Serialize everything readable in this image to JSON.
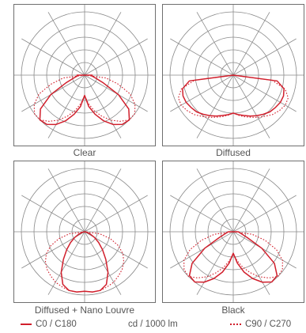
{
  "colors": {
    "curve": "#d11f2c",
    "grid": "#8a8a8a",
    "frame": "#6f6f6f"
  },
  "panels": [
    {
      "caption": "Clear",
      "c0": [
        0.32,
        0.5,
        0.64,
        0.78,
        0.9,
        0.98,
        1.0,
        0.88,
        0.62,
        0.32,
        0.18,
        0.12,
        0.12
      ],
      "c90": [
        0.32,
        0.45,
        0.58,
        0.7,
        0.82,
        0.92,
        1.0,
        1.0,
        0.92,
        0.78,
        0.55,
        0.34,
        0.0
      ]
    },
    {
      "caption": "Diffused",
      "c0": [
        0.6,
        0.63,
        0.66,
        0.7,
        0.74,
        0.78,
        0.82,
        0.84,
        0.86,
        0.86,
        0.83,
        0.7,
        0.0
      ],
      "c90": [
        0.6,
        0.64,
        0.68,
        0.72,
        0.77,
        0.82,
        0.88,
        0.92,
        0.95,
        0.94,
        0.85,
        0.62,
        0.0
      ]
    },
    {
      "caption": "Diffused + Nano Louvre",
      "c0": [
        0.94,
        0.96,
        0.96,
        0.9,
        0.74,
        0.55,
        0.4,
        0.28,
        0.18,
        0.1,
        0.04,
        0.0,
        0.0
      ],
      "c90": [
        0.94,
        0.96,
        0.96,
        0.94,
        0.92,
        0.88,
        0.84,
        0.78,
        0.7,
        0.58,
        0.42,
        0.24,
        0.0
      ]
    },
    {
      "caption": "Black",
      "c0": [
        0.34,
        0.5,
        0.66,
        0.8,
        0.92,
        1.0,
        0.98,
        0.82,
        0.52,
        0.24,
        0.14,
        0.1,
        0.08
      ],
      "c90": [
        0.34,
        0.46,
        0.58,
        0.7,
        0.82,
        0.92,
        1.0,
        0.98,
        0.9,
        0.74,
        0.52,
        0.3,
        0.0
      ]
    }
  ],
  "legend": {
    "c0_label": "C0 / C180",
    "unit_label": "cd / 1000 lm",
    "c90_label": "C90 / C270"
  }
}
